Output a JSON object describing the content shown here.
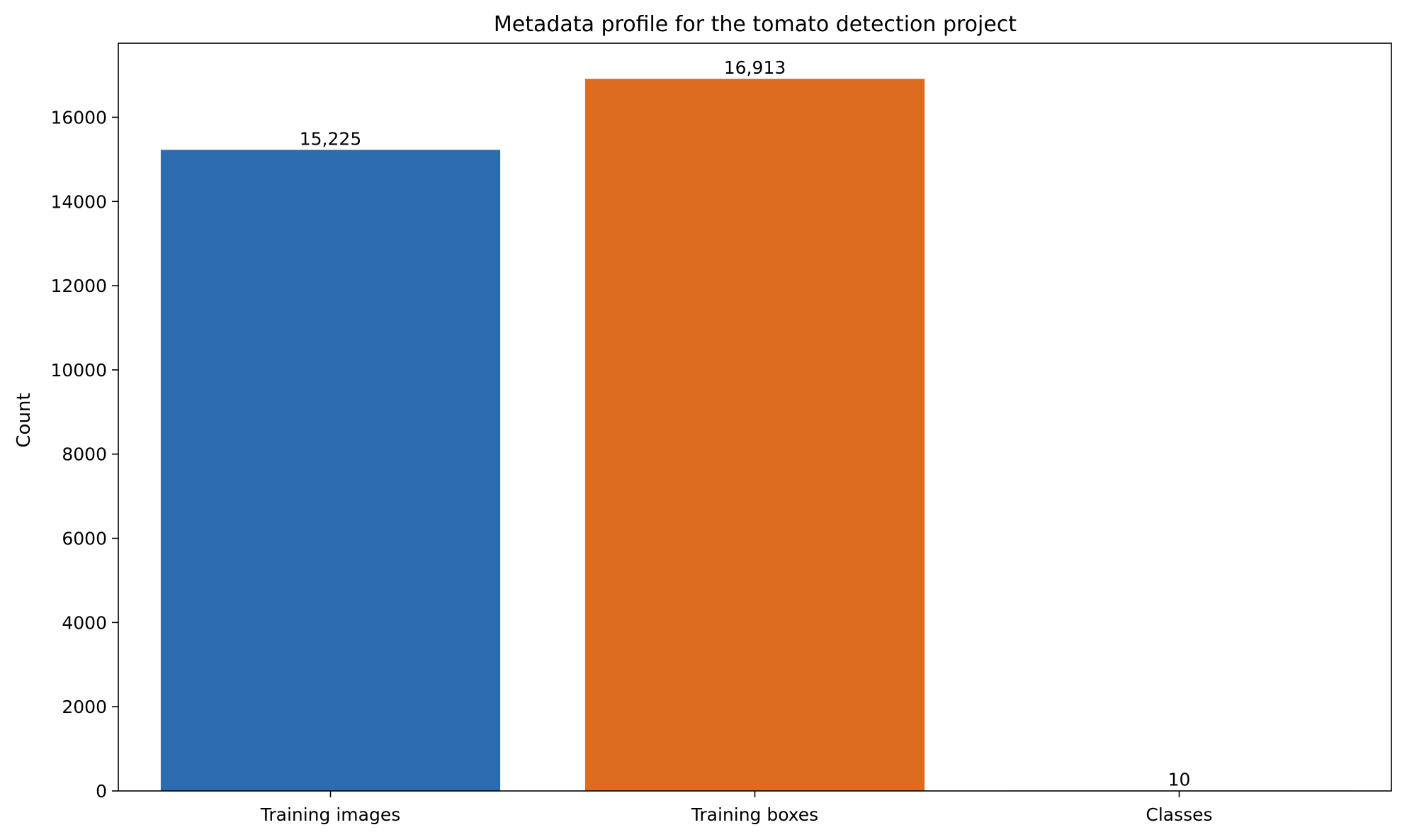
{
  "chart_data": {
    "type": "bar",
    "title": "Metadata profile for the tomato detection project",
    "xlabel": "",
    "ylabel": "Count",
    "categories": [
      "Training images",
      "Training boxes",
      "Classes"
    ],
    "values": [
      15225,
      16913,
      10
    ],
    "value_labels": [
      "15,225",
      "16,913",
      "10"
    ],
    "colors": [
      "#2b6cb0",
      "#dd6b20",
      "#2f855a"
    ],
    "ylim": [
      0,
      17758
    ],
    "yticks": [
      0,
      2000,
      4000,
      6000,
      8000,
      10000,
      12000,
      14000,
      16000
    ],
    "grid": false,
    "legend": "none"
  }
}
